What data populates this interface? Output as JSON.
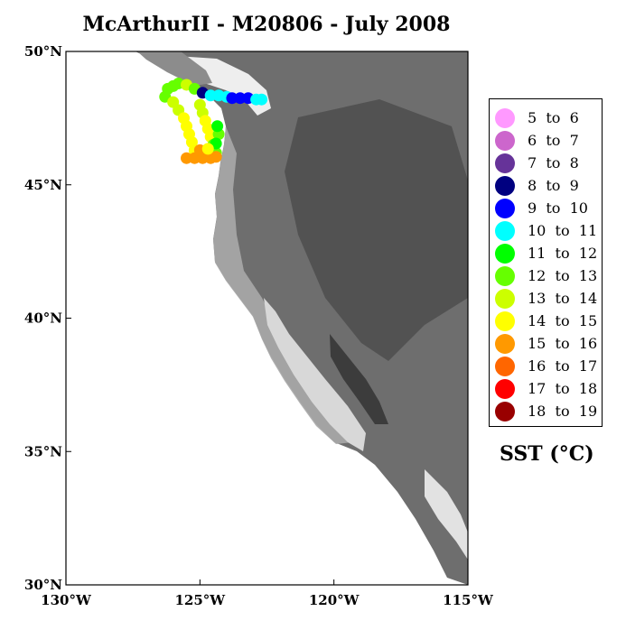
{
  "title": "McArthurII - M20806 - July 2008",
  "axes": {
    "lat_labels": [
      "50°N",
      "45°N",
      "40°N",
      "35°N",
      "30°N"
    ],
    "lat_values": [
      50,
      45,
      40,
      35,
      30
    ],
    "lon_labels": [
      "130°W",
      "125°W",
      "120°W",
      "115°W"
    ],
    "lon_values": [
      -130,
      -125,
      -120,
      -115
    ],
    "lat_range": [
      30,
      50
    ],
    "lon_range": [
      -130,
      -115
    ]
  },
  "legend": {
    "title": "SST (°C)",
    "items": [
      {
        "label": "5  to  6",
        "color": "#ff99ff"
      },
      {
        "label": "6  to  7",
        "color": "#cc66cc"
      },
      {
        "label": "7  to  8",
        "color": "#663399"
      },
      {
        "label": "8  to  9",
        "color": "#000080"
      },
      {
        "label": "9  to  10",
        "color": "#0000ff"
      },
      {
        "label": "10  to  11",
        "color": "#00ffff"
      },
      {
        "label": "11  to  12",
        "color": "#00ff00"
      },
      {
        "label": "12  to  13",
        "color": "#66ff00"
      },
      {
        "label": "13  to  14",
        "color": "#ccff00"
      },
      {
        "label": "14  to  15",
        "color": "#ffff00"
      },
      {
        "label": "15  to  16",
        "color": "#ff9900"
      },
      {
        "label": "16  to  17",
        "color": "#ff6600"
      },
      {
        "label": "17  to  18",
        "color": "#ff0000"
      },
      {
        "label": "18  to  19",
        "color": "#990000"
      }
    ]
  },
  "cruise_track": [
    {
      "lon": -126.2,
      "lat": 48.6,
      "sst": 12.5
    },
    {
      "lon": -126.0,
      "lat": 48.7,
      "sst": 12.5
    },
    {
      "lon": -125.8,
      "lat": 48.8,
      "sst": 12.5
    },
    {
      "lon": -125.5,
      "lat": 48.75,
      "sst": 13.5
    },
    {
      "lon": -125.2,
      "lat": 48.6,
      "sst": 12.5
    },
    {
      "lon": -124.9,
      "lat": 48.45,
      "sst": 8.5
    },
    {
      "lon": -124.6,
      "lat": 48.35,
      "sst": 10.5
    },
    {
      "lon": -124.3,
      "lat": 48.35,
      "sst": 10.5
    },
    {
      "lon": -124.0,
      "lat": 48.3,
      "sst": 10.5
    },
    {
      "lon": -123.8,
      "lat": 48.25,
      "sst": 9.5
    },
    {
      "lon": -123.5,
      "lat": 48.25,
      "sst": 9.5
    },
    {
      "lon": -123.2,
      "lat": 48.25,
      "sst": 9.5
    },
    {
      "lon": -122.9,
      "lat": 48.2,
      "sst": 10.5
    },
    {
      "lon": -122.7,
      "lat": 48.2,
      "sst": 10.5
    },
    {
      "lon": -126.3,
      "lat": 48.3,
      "sst": 12.5
    },
    {
      "lon": -126.0,
      "lat": 48.1,
      "sst": 13.5
    },
    {
      "lon": -125.8,
      "lat": 47.8,
      "sst": 13.5
    },
    {
      "lon": -125.6,
      "lat": 47.5,
      "sst": 14.5
    },
    {
      "lon": -125.5,
      "lat": 47.2,
      "sst": 14.5
    },
    {
      "lon": -125.4,
      "lat": 46.9,
      "sst": 14.5
    },
    {
      "lon": -125.3,
      "lat": 46.6,
      "sst": 14.5
    },
    {
      "lon": -125.2,
      "lat": 46.3,
      "sst": 14.5
    },
    {
      "lon": -125.0,
      "lat": 48.0,
      "sst": 13.5
    },
    {
      "lon": -124.9,
      "lat": 47.7,
      "sst": 13.5
    },
    {
      "lon": -124.8,
      "lat": 47.4,
      "sst": 14.5
    },
    {
      "lon": -124.7,
      "lat": 47.1,
      "sst": 14.5
    },
    {
      "lon": -124.6,
      "lat": 46.8,
      "sst": 14.5
    },
    {
      "lon": -124.5,
      "lat": 46.5,
      "sst": 12.5
    },
    {
      "lon": -124.4,
      "lat": 46.2,
      "sst": 12.5
    },
    {
      "lon": -124.3,
      "lat": 46.9,
      "sst": 12.5
    },
    {
      "lon": -124.35,
      "lat": 47.2,
      "sst": 11.5
    },
    {
      "lon": -124.4,
      "lat": 46.55,
      "sst": 11.5
    },
    {
      "lon": -125.5,
      "lat": 46.0,
      "sst": 15.5
    },
    {
      "lon": -125.2,
      "lat": 46.0,
      "sst": 15.5
    },
    {
      "lon": -124.9,
      "lat": 46.0,
      "sst": 15.5
    },
    {
      "lon": -124.6,
      "lat": 46.0,
      "sst": 15.5
    },
    {
      "lon": -124.4,
      "lat": 46.05,
      "sst": 15.5
    },
    {
      "lon": -125.0,
      "lat": 46.3,
      "sst": 15.5
    },
    {
      "lon": -124.7,
      "lat": 46.35,
      "sst": 14.5
    }
  ]
}
